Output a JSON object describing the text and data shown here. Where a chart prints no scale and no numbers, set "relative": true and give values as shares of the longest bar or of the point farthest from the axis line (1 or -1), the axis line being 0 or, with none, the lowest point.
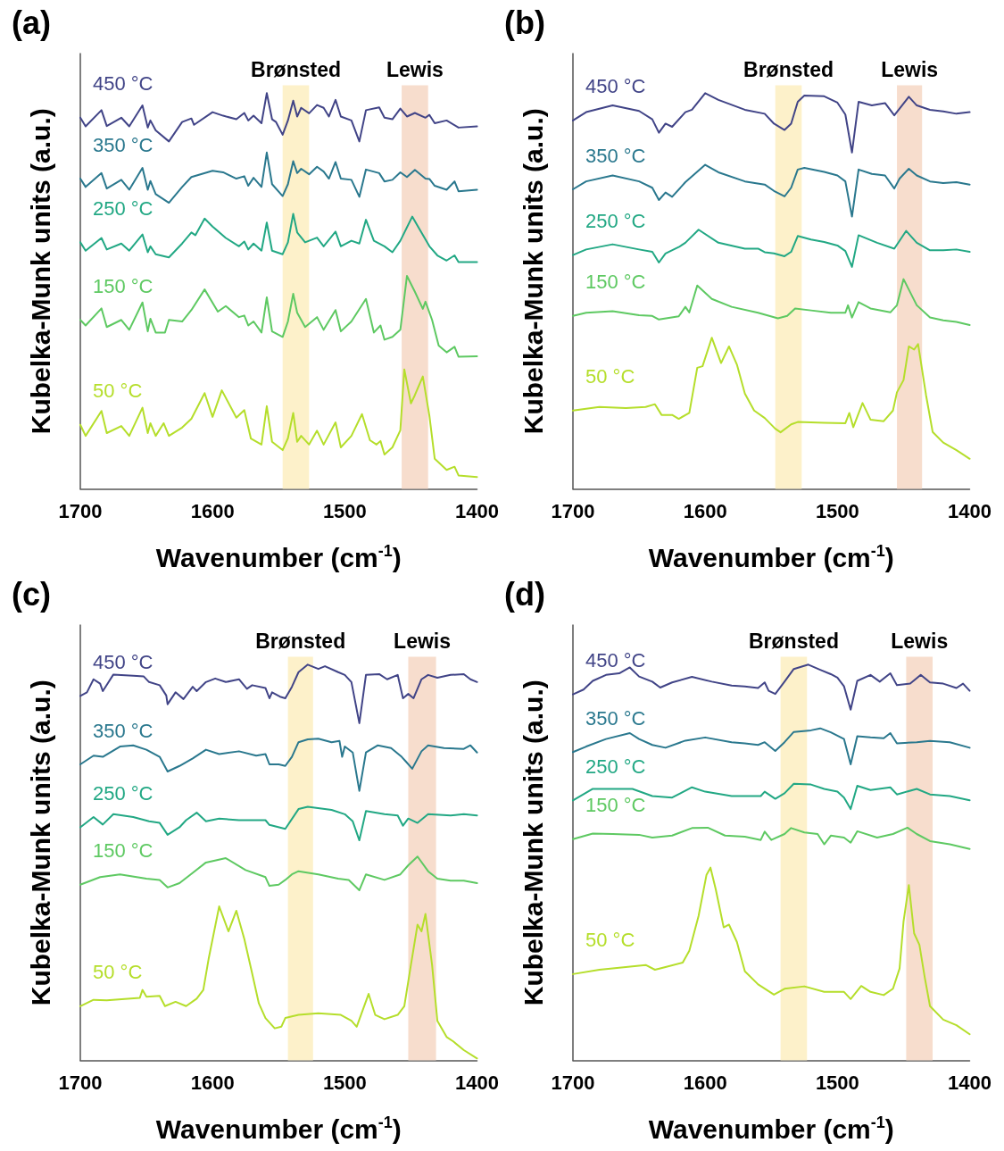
{
  "chart_data": [
    {
      "type": "line",
      "title": "(a)",
      "xlabel": "Wavenumber (cm$^{-1}$)",
      "ylabel": "Kubelka-Munk units (a.u.)",
      "relative": true,
      "xlim": [
        1700,
        1400
      ],
      "xticks": [
        1700,
        1600,
        1500,
        1400
      ],
      "bands": [
        {
          "axis": "x",
          "from": 1547,
          "to": 1527,
          "label": "Brønsted",
          "color": "#fdf0c4"
        },
        {
          "axis": "x",
          "from": 1457,
          "to": 1437,
          "label": "Lewis",
          "color": "#f6d9c8"
        }
      ],
      "series": [
        {
          "name": "450 °C",
          "color": "#414487",
          "x": [
            1700,
            1696,
            1684,
            1680,
            1669,
            1663,
            1653,
            1649,
            1647,
            1643,
            1633,
            1623,
            1616,
            1614,
            1600,
            1592,
            1582,
            1576,
            1573,
            1569,
            1563,
            1559,
            1555,
            1552,
            1547,
            1543,
            1539,
            1536,
            1533,
            1527,
            1521,
            1516,
            1512,
            1507,
            1503,
            1495,
            1489,
            1484,
            1474,
            1470,
            1464,
            1458,
            1453,
            1447,
            1439,
            1436,
            1432,
            1423,
            1414,
            1400
          ],
          "values": [
            0.938,
            0.916,
            0.957,
            0.917,
            0.938,
            0.916,
            0.969,
            0.913,
            0.931,
            0.906,
            0.878,
            0.927,
            0.936,
            0.92,
            0.952,
            0.943,
            0.934,
            0.95,
            0.931,
            0.943,
            0.924,
            1.0,
            0.934,
            0.927,
            0.895,
            0.931,
            0.981,
            0.941,
            0.963,
            0.949,
            0.97,
            0.963,
            0.941,
            0.983,
            0.941,
            0.931,
            0.878,
            0.957,
            0.964,
            0.938,
            0.934,
            0.961,
            0.941,
            0.95,
            0.938,
            0.945,
            0.924,
            0.931,
            0.913,
            0.916
          ]
        },
        {
          "name": "350 °C",
          "color": "#2a788e",
          "x": [
            1700,
            1696,
            1684,
            1680,
            1669,
            1663,
            1653,
            1649,
            1647,
            1643,
            1633,
            1623,
            1616,
            1600,
            1592,
            1582,
            1576,
            1573,
            1569,
            1563,
            1559,
            1555,
            1547,
            1543,
            1539,
            1536,
            1533,
            1527,
            1521,
            1516,
            1512,
            1507,
            1503,
            1495,
            1489,
            1484,
            1474,
            1470,
            1464,
            1458,
            1453,
            1447,
            1439,
            1436,
            1432,
            1423,
            1417,
            1414,
            1400
          ],
          "values": [
            0.784,
            0.763,
            0.798,
            0.759,
            0.781,
            0.756,
            0.811,
            0.756,
            0.778,
            0.745,
            0.723,
            0.763,
            0.788,
            0.804,
            0.8,
            0.784,
            0.79,
            0.766,
            0.786,
            0.763,
            0.85,
            0.77,
            0.74,
            0.77,
            0.828,
            0.798,
            0.809,
            0.795,
            0.814,
            0.802,
            0.784,
            0.826,
            0.784,
            0.781,
            0.738,
            0.807,
            0.798,
            0.777,
            0.781,
            0.8,
            0.788,
            0.806,
            0.784,
            0.783,
            0.766,
            0.756,
            0.777,
            0.752,
            0.756
          ]
        },
        {
          "name": "250 °C",
          "color": "#22a884",
          "x": [
            1700,
            1696,
            1684,
            1680,
            1669,
            1663,
            1653,
            1649,
            1647,
            1643,
            1633,
            1623,
            1616,
            1613,
            1606,
            1600,
            1590,
            1580,
            1576,
            1573,
            1569,
            1563,
            1559,
            1555,
            1547,
            1543,
            1539,
            1536,
            1530,
            1521,
            1516,
            1507,
            1503,
            1495,
            1489,
            1484,
            1478,
            1470,
            1464,
            1458,
            1449,
            1436,
            1430,
            1423,
            1417,
            1414,
            1400
          ],
          "values": [
            0.623,
            0.602,
            0.634,
            0.605,
            0.62,
            0.602,
            0.643,
            0.598,
            0.613,
            0.593,
            0.585,
            0.62,
            0.648,
            0.641,
            0.683,
            0.663,
            0.634,
            0.613,
            0.625,
            0.605,
            0.62,
            0.602,
            0.673,
            0.602,
            0.593,
            0.623,
            0.695,
            0.648,
            0.623,
            0.635,
            0.613,
            0.65,
            0.613,
            0.627,
            0.62,
            0.68,
            0.627,
            0.613,
            0.598,
            0.627,
            0.688,
            0.613,
            0.59,
            0.577,
            0.59,
            0.573,
            0.573
          ]
        },
        {
          "name": "150 °C",
          "color": "#5ec962",
          "x": [
            1700,
            1696,
            1684,
            1680,
            1669,
            1663,
            1653,
            1649,
            1647,
            1643,
            1636,
            1633,
            1623,
            1616,
            1606,
            1596,
            1590,
            1580,
            1576,
            1573,
            1569,
            1563,
            1559,
            1555,
            1547,
            1543,
            1539,
            1536,
            1530,
            1521,
            1516,
            1507,
            1503,
            1495,
            1484,
            1478,
            1473,
            1470,
            1464,
            1458,
            1453,
            1447,
            1441,
            1439,
            1434,
            1429,
            1423,
            1417,
            1414,
            1400
          ],
          "values": [
            0.427,
            0.413,
            0.456,
            0.409,
            0.427,
            0.402,
            0.471,
            0.398,
            0.43,
            0.395,
            0.395,
            0.427,
            0.423,
            0.452,
            0.504,
            0.448,
            0.462,
            0.434,
            0.438,
            0.413,
            0.423,
            0.395,
            0.484,
            0.398,
            0.384,
            0.423,
            0.493,
            0.445,
            0.409,
            0.434,
            0.402,
            0.452,
            0.398,
            0.423,
            0.48,
            0.395,
            0.413,
            0.377,
            0.384,
            0.402,
            0.538,
            0.498,
            0.455,
            0.473,
            0.427,
            0.362,
            0.345,
            0.359,
            0.334,
            0.335
          ]
        },
        {
          "name": "50 °C",
          "color": "#b5de2b",
          "x": [
            1700,
            1696,
            1684,
            1680,
            1669,
            1663,
            1653,
            1649,
            1647,
            1643,
            1637,
            1633,
            1623,
            1616,
            1606,
            1600,
            1593,
            1582,
            1576,
            1571,
            1563,
            1559,
            1555,
            1547,
            1543,
            1539,
            1536,
            1533,
            1527,
            1521,
            1516,
            1507,
            1503,
            1495,
            1487,
            1481,
            1476,
            1473,
            1470,
            1464,
            1458,
            1455,
            1450,
            1447,
            1441,
            1436,
            1432,
            1423,
            1417,
            1414,
            1400
          ],
          "values": [
            0.162,
            0.134,
            0.197,
            0.141,
            0.159,
            0.134,
            0.205,
            0.141,
            0.166,
            0.134,
            0.166,
            0.134,
            0.155,
            0.177,
            0.242,
            0.182,
            0.249,
            0.18,
            0.199,
            0.127,
            0.112,
            0.209,
            0.119,
            0.098,
            0.128,
            0.192,
            0.119,
            0.134,
            0.112,
            0.147,
            0.112,
            0.168,
            0.105,
            0.134,
            0.189,
            0.123,
            0.112,
            0.121,
            0.087,
            0.105,
            0.148,
            0.302,
            0.216,
            0.237,
            0.284,
            0.184,
            0.076,
            0.048,
            0.056,
            0.034,
            0.03
          ]
        }
      ]
    },
    {
      "type": "line",
      "title": "(b)",
      "xlabel": "Wavenumber (cm$^{-1}$)",
      "ylabel": "Kubelka-Munk units (a.u.)",
      "relative": true,
      "xlim": [
        1700,
        1400
      ],
      "xticks": [
        1700,
        1600,
        1500,
        1400
      ],
      "bands": [
        {
          "axis": "x",
          "from": 1547,
          "to": 1527,
          "label": "Brønsted",
          "color": "#fdf0c4"
        },
        {
          "axis": "x",
          "from": 1455,
          "to": 1436,
          "label": "Lewis",
          "color": "#f6d9c8"
        }
      ],
      "series": [
        {
          "name": "450 °C",
          "color": "#414487",
          "x": [
            1700,
            1690,
            1670,
            1650,
            1640,
            1635,
            1630,
            1625,
            1615,
            1610,
            1600,
            1590,
            1570,
            1555,
            1548,
            1540,
            1535,
            1530,
            1525,
            1510,
            1500,
            1494,
            1489,
            1484,
            1474,
            1464,
            1457,
            1453,
            1446,
            1440,
            1430,
            1420,
            1410,
            1400
          ],
          "values": [
            0.931,
            0.952,
            0.969,
            0.955,
            0.934,
            0.9,
            0.923,
            0.915,
            0.952,
            0.958,
            1.0,
            0.983,
            0.958,
            0.948,
            0.923,
            0.907,
            0.923,
            0.978,
            0.994,
            0.992,
            0.976,
            0.946,
            0.85,
            0.978,
            0.969,
            0.975,
            0.944,
            0.961,
            0.991,
            0.969,
            0.958,
            0.954,
            0.948,
            0.952
          ]
        },
        {
          "name": "350 °C",
          "color": "#2a788e",
          "x": [
            1700,
            1690,
            1670,
            1650,
            1640,
            1635,
            1630,
            1625,
            1615,
            1600,
            1590,
            1570,
            1555,
            1548,
            1540,
            1535,
            1530,
            1525,
            1510,
            1500,
            1494,
            1489,
            1484,
            1474,
            1464,
            1457,
            1453,
            1446,
            1440,
            1430,
            1420,
            1410,
            1400
          ],
          "values": [
            0.757,
            0.777,
            0.792,
            0.777,
            0.761,
            0.73,
            0.749,
            0.738,
            0.775,
            0.819,
            0.8,
            0.777,
            0.769,
            0.753,
            0.739,
            0.761,
            0.807,
            0.811,
            0.801,
            0.792,
            0.777,
            0.688,
            0.807,
            0.796,
            0.792,
            0.759,
            0.784,
            0.809,
            0.792,
            0.777,
            0.773,
            0.775,
            0.769
          ]
        },
        {
          "name": "250 °C",
          "color": "#22a884",
          "x": [
            1700,
            1690,
            1670,
            1650,
            1640,
            1635,
            1630,
            1620,
            1615,
            1605,
            1590,
            1570,
            1560,
            1555,
            1548,
            1540,
            1535,
            1530,
            1520,
            1510,
            1500,
            1494,
            1489,
            1484,
            1470,
            1457,
            1448,
            1440,
            1430,
            1420,
            1410,
            1400
          ],
          "values": [
            0.591,
            0.605,
            0.618,
            0.605,
            0.599,
            0.572,
            0.595,
            0.611,
            0.622,
            0.655,
            0.622,
            0.607,
            0.607,
            0.598,
            0.595,
            0.588,
            0.599,
            0.639,
            0.63,
            0.624,
            0.615,
            0.601,
            0.561,
            0.641,
            0.622,
            0.607,
            0.652,
            0.622,
            0.603,
            0.603,
            0.605,
            0.599
          ]
        },
        {
          "name": "150 °C",
          "color": "#5ec962",
          "x": [
            1700,
            1690,
            1670,
            1650,
            1640,
            1635,
            1620,
            1615,
            1612,
            1606,
            1595,
            1580,
            1560,
            1545,
            1538,
            1532,
            1520,
            1505,
            1494,
            1492,
            1489,
            1484,
            1475,
            1460,
            1455,
            1450,
            1440,
            1430,
            1420,
            1410,
            1400
          ],
          "values": [
            0.437,
            0.445,
            0.449,
            0.439,
            0.437,
            0.428,
            0.436,
            0.46,
            0.446,
            0.514,
            0.48,
            0.46,
            0.445,
            0.431,
            0.437,
            0.456,
            0.451,
            0.445,
            0.445,
            0.464,
            0.433,
            0.472,
            0.456,
            0.446,
            0.464,
            0.53,
            0.464,
            0.433,
            0.426,
            0.422,
            0.414
          ]
        },
        {
          "name": "50 °C",
          "color": "#b5de2b",
          "x": [
            1700,
            1680,
            1660,
            1645,
            1638,
            1633,
            1625,
            1620,
            1612,
            1606,
            1602,
            1595,
            1588,
            1582,
            1576,
            1570,
            1563,
            1555,
            1547,
            1543,
            1535,
            1530,
            1510,
            1494,
            1491,
            1488,
            1481,
            1475,
            1465,
            1458,
            1455,
            1450,
            1446,
            1442,
            1439,
            1433,
            1428,
            1420,
            1410,
            1400
          ],
          "values": [
            0.198,
            0.207,
            0.204,
            0.207,
            0.214,
            0.187,
            0.187,
            0.177,
            0.192,
            0.306,
            0.31,
            0.382,
            0.318,
            0.36,
            0.314,
            0.241,
            0.198,
            0.179,
            0.152,
            0.143,
            0.163,
            0.169,
            0.167,
            0.166,
            0.192,
            0.156,
            0.217,
            0.175,
            0.171,
            0.198,
            0.244,
            0.275,
            0.36,
            0.352,
            0.366,
            0.237,
            0.144,
            0.117,
            0.098,
            0.076
          ]
        }
      ]
    },
    {
      "type": "line",
      "title": "(c)",
      "xlabel": "Wavenumber (cm$^{-1}$)",
      "ylabel": "Kubelka-Munk units (a.u.)",
      "relative": true,
      "xlim": [
        1700,
        1400
      ],
      "xticks": [
        1700,
        1600,
        1500,
        1400
      ],
      "bands": [
        {
          "axis": "x",
          "from": 1543,
          "to": 1524,
          "label": "Brønsted",
          "color": "#fdf0c4"
        },
        {
          "axis": "x",
          "from": 1452,
          "to": 1431,
          "label": "Lewis",
          "color": "#f6d9c8"
        }
      ],
      "series": [
        {
          "name": "450 °C",
          "color": "#414487",
          "x": [
            1700,
            1695,
            1690,
            1685,
            1683,
            1675,
            1660,
            1652,
            1648,
            1640,
            1635,
            1634,
            1628,
            1622,
            1615,
            1612,
            1605,
            1598,
            1590,
            1580,
            1574,
            1570,
            1560,
            1557,
            1555,
            1549,
            1545,
            1540,
            1535,
            1528,
            1520,
            1515,
            1505,
            1500,
            1495,
            1489,
            1484,
            1474,
            1468,
            1460,
            1456,
            1452,
            1448,
            1442,
            1437,
            1430,
            1420,
            1410,
            1405,
            1400
          ],
          "values": [
            0.921,
            0.93,
            0.963,
            0.952,
            0.933,
            0.975,
            0.972,
            0.97,
            0.956,
            0.948,
            0.922,
            0.9,
            0.93,
            0.913,
            0.944,
            0.933,
            0.956,
            0.965,
            0.956,
            0.963,
            0.939,
            0.948,
            0.941,
            0.915,
            0.93,
            0.919,
            0.915,
            0.944,
            0.981,
            1.0,
            0.989,
            0.996,
            0.981,
            0.974,
            0.956,
            0.852,
            0.974,
            0.976,
            0.963,
            0.974,
            0.915,
            0.926,
            0.915,
            0.963,
            0.974,
            0.967,
            0.974,
            0.976,
            0.963,
            0.956
          ]
        },
        {
          "name": "350 °C",
          "color": "#2a788e",
          "x": [
            1700,
            1690,
            1683,
            1670,
            1660,
            1650,
            1640,
            1634,
            1625,
            1615,
            1605,
            1595,
            1580,
            1567,
            1560,
            1557,
            1550,
            1545,
            1540,
            1535,
            1528,
            1520,
            1510,
            1504,
            1502,
            1500,
            1494,
            1489,
            1484,
            1475,
            1465,
            1457,
            1454,
            1449,
            1442,
            1437,
            1425,
            1410,
            1405,
            1400
          ],
          "values": [
            0.748,
            0.77,
            0.767,
            0.793,
            0.796,
            0.785,
            0.767,
            0.73,
            0.744,
            0.763,
            0.785,
            0.774,
            0.781,
            0.77,
            0.774,
            0.748,
            0.748,
            0.744,
            0.767,
            0.804,
            0.811,
            0.813,
            0.804,
            0.807,
            0.767,
            0.793,
            0.778,
            0.681,
            0.778,
            0.796,
            0.789,
            0.767,
            0.756,
            0.737,
            0.781,
            0.796,
            0.789,
            0.787,
            0.796,
            0.778
          ]
        },
        {
          "name": "250 °C",
          "color": "#22a884",
          "x": [
            1700,
            1690,
            1683,
            1675,
            1660,
            1648,
            1640,
            1634,
            1625,
            1620,
            1612,
            1605,
            1595,
            1580,
            1560,
            1557,
            1545,
            1535,
            1528,
            1510,
            1500,
            1494,
            1489,
            1484,
            1470,
            1460,
            1456,
            1452,
            1445,
            1437,
            1420,
            1410,
            1400
          ],
          "values": [
            0.589,
            0.615,
            0.596,
            0.622,
            0.615,
            0.604,
            0.6,
            0.57,
            0.589,
            0.607,
            0.626,
            0.604,
            0.611,
            0.607,
            0.607,
            0.595,
            0.585,
            0.635,
            0.641,
            0.633,
            0.622,
            0.604,
            0.556,
            0.63,
            0.622,
            0.619,
            0.593,
            0.611,
            0.6,
            0.622,
            0.619,
            0.622,
            0.619
          ]
        },
        {
          "name": "150 °C",
          "color": "#5ec962",
          "x": [
            1700,
            1685,
            1670,
            1650,
            1640,
            1634,
            1625,
            1615,
            1605,
            1590,
            1575,
            1560,
            1557,
            1550,
            1545,
            1540,
            1535,
            1520,
            1505,
            1497,
            1489,
            1484,
            1470,
            1458,
            1452,
            1445,
            1437,
            1430,
            1420,
            1410,
            1400
          ],
          "values": [
            0.444,
            0.463,
            0.47,
            0.459,
            0.456,
            0.437,
            0.448,
            0.474,
            0.5,
            0.511,
            0.481,
            0.463,
            0.441,
            0.444,
            0.456,
            0.47,
            0.478,
            0.47,
            0.459,
            0.456,
            0.43,
            0.47,
            0.456,
            0.47,
            0.493,
            0.515,
            0.478,
            0.459,
            0.454,
            0.454,
            0.448
          ]
        },
        {
          "name": "50 °C",
          "color": "#b5de2b",
          "x": [
            1700,
            1690,
            1680,
            1655,
            1653,
            1650,
            1640,
            1636,
            1628,
            1620,
            1612,
            1607,
            1603,
            1595,
            1588,
            1582,
            1576,
            1570,
            1565,
            1560,
            1553,
            1548,
            1545,
            1535,
            1520,
            1503,
            1495,
            1491,
            1482,
            1477,
            1470,
            1460,
            1455,
            1450,
            1445,
            1442,
            1439,
            1434,
            1430,
            1423,
            1418,
            1410,
            1400
          ],
          "values": [
            0.137,
            0.153,
            0.152,
            0.158,
            0.178,
            0.161,
            0.163,
            0.137,
            0.148,
            0.137,
            0.156,
            0.178,
            0.256,
            0.389,
            0.326,
            0.378,
            0.307,
            0.219,
            0.144,
            0.107,
            0.081,
            0.085,
            0.107,
            0.115,
            0.119,
            0.115,
            0.1,
            0.085,
            0.168,
            0.115,
            0.104,
            0.115,
            0.137,
            0.241,
            0.343,
            0.326,
            0.37,
            0.241,
            0.1,
            0.059,
            0.048,
            0.026,
            0.005
          ]
        }
      ]
    },
    {
      "type": "line",
      "title": "(d)",
      "xlabel": "Wavenumber (cm$^{-1}$)",
      "ylabel": "Kubelka-Munk units (a.u.)",
      "relative": true,
      "xlim": [
        1700,
        1400
      ],
      "xticks": [
        1700,
        1600,
        1500,
        1400
      ],
      "bands": [
        {
          "axis": "x",
          "from": 1543,
          "to": 1523,
          "label": "Brønsted",
          "color": "#fdf0c4"
        },
        {
          "axis": "x",
          "from": 1448,
          "to": 1428,
          "label": "Lewis",
          "color": "#f6d9c8"
        }
      ],
      "series": [
        {
          "name": "450 °C",
          "color": "#414487",
          "x": [
            1700,
            1692,
            1685,
            1675,
            1665,
            1657,
            1650,
            1640,
            1634,
            1625,
            1610,
            1595,
            1580,
            1570,
            1560,
            1555,
            1552,
            1547,
            1540,
            1533,
            1522,
            1513,
            1505,
            1500,
            1495,
            1490,
            1485,
            1475,
            1468,
            1460,
            1455,
            1445,
            1437,
            1430,
            1420,
            1410,
            1405,
            1400
          ],
          "values": [
            0.925,
            0.937,
            0.959,
            0.974,
            0.978,
            0.993,
            0.97,
            0.957,
            0.942,
            0.955,
            0.969,
            0.957,
            0.947,
            0.945,
            0.941,
            0.955,
            0.934,
            0.926,
            0.957,
            0.989,
            1.0,
            0.987,
            0.976,
            0.967,
            0.945,
            0.886,
            0.959,
            0.974,
            0.957,
            0.978,
            0.948,
            0.952,
            0.974,
            0.955,
            0.952,
            0.941,
            0.952,
            0.934
          ]
        },
        {
          "name": "350 °C",
          "color": "#2a788e",
          "x": [
            1700,
            1690,
            1675,
            1657,
            1650,
            1640,
            1630,
            1615,
            1600,
            1580,
            1570,
            1560,
            1555,
            1547,
            1540,
            1533,
            1520,
            1513,
            1505,
            1495,
            1490,
            1485,
            1475,
            1465,
            1460,
            1455,
            1440,
            1430,
            1415,
            1400
          ],
          "values": [
            0.779,
            0.793,
            0.812,
            0.827,
            0.812,
            0.797,
            0.79,
            0.808,
            0.816,
            0.804,
            0.801,
            0.797,
            0.804,
            0.782,
            0.804,
            0.83,
            0.834,
            0.839,
            0.829,
            0.812,
            0.748,
            0.819,
            0.816,
            0.814,
            0.827,
            0.801,
            0.804,
            0.807,
            0.804,
            0.79
          ]
        },
        {
          "name": "250 °C",
          "color": "#22a884",
          "x": [
            1700,
            1685,
            1670,
            1655,
            1640,
            1625,
            1610,
            1600,
            1580,
            1558,
            1555,
            1547,
            1540,
            1533,
            1520,
            1510,
            1500,
            1495,
            1490,
            1485,
            1475,
            1460,
            1455,
            1440,
            1430,
            1415,
            1400
          ],
          "values": [
            0.657,
            0.686,
            0.686,
            0.686,
            0.668,
            0.664,
            0.69,
            0.679,
            0.668,
            0.668,
            0.679,
            0.661,
            0.675,
            0.699,
            0.697,
            0.686,
            0.679,
            0.664,
            0.635,
            0.694,
            0.683,
            0.69,
            0.672,
            0.686,
            0.672,
            0.668,
            0.657
          ]
        },
        {
          "name": "150 °C",
          "color": "#5ec962",
          "x": [
            1700,
            1685,
            1670,
            1650,
            1640,
            1625,
            1610,
            1598,
            1585,
            1570,
            1558,
            1555,
            1550,
            1540,
            1535,
            1525,
            1515,
            1510,
            1505,
            1495,
            1490,
            1485,
            1470,
            1458,
            1447,
            1440,
            1430,
            1415,
            1400
          ],
          "values": [
            0.559,
            0.573,
            0.572,
            0.57,
            0.563,
            0.568,
            0.587,
            0.588,
            0.568,
            0.565,
            0.557,
            0.578,
            0.557,
            0.572,
            0.587,
            0.576,
            0.572,
            0.546,
            0.568,
            0.563,
            0.55,
            0.579,
            0.563,
            0.572,
            0.588,
            0.572,
            0.554,
            0.546,
            0.534
          ]
        },
        {
          "name": "50 °C",
          "color": "#b5de2b",
          "x": [
            1700,
            1680,
            1660,
            1645,
            1638,
            1630,
            1617,
            1612,
            1605,
            1599,
            1596,
            1592,
            1586,
            1582,
            1576,
            1570,
            1560,
            1548,
            1540,
            1525,
            1510,
            1495,
            1490,
            1482,
            1475,
            1465,
            1458,
            1453,
            1450,
            1446,
            1442,
            1438,
            1434,
            1430,
            1420,
            1410,
            1400
          ],
          "values": [
            0.218,
            0.229,
            0.236,
            0.241,
            0.229,
            0.236,
            0.247,
            0.277,
            0.365,
            0.469,
            0.487,
            0.432,
            0.336,
            0.343,
            0.299,
            0.225,
            0.192,
            0.166,
            0.181,
            0.187,
            0.173,
            0.173,
            0.155,
            0.188,
            0.173,
            0.165,
            0.181,
            0.232,
            0.351,
            0.443,
            0.321,
            0.292,
            0.21,
            0.137,
            0.103,
            0.089,
            0.066
          ]
        }
      ]
    }
  ]
}
